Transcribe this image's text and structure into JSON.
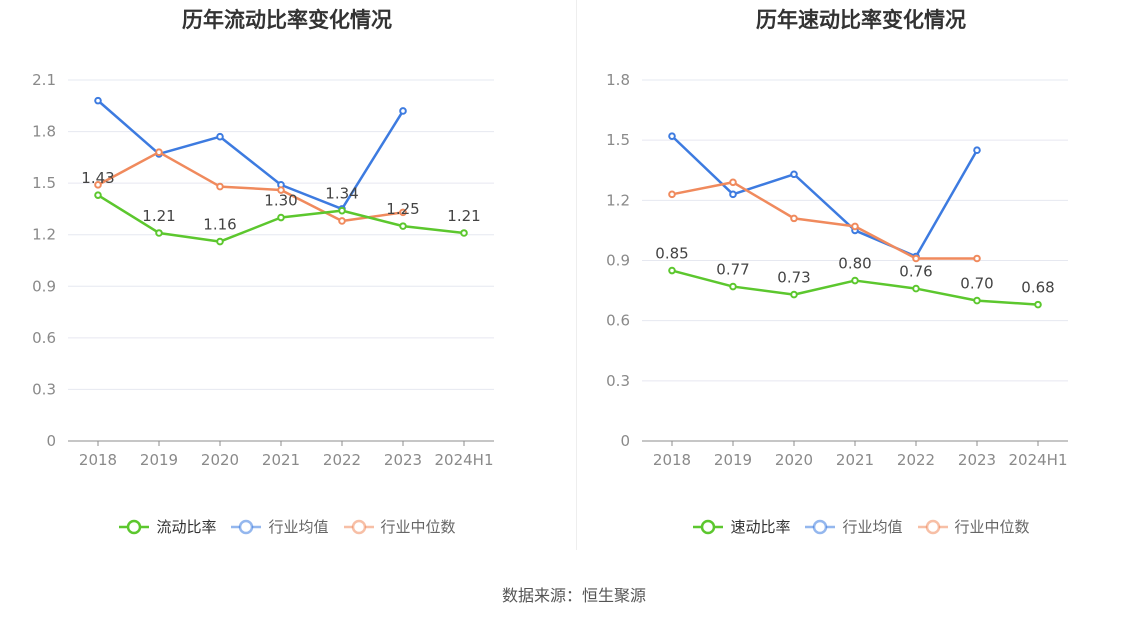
{
  "source": "数据来源：恒生聚源",
  "chart_data": [
    {
      "type": "line",
      "title": "历年流动比率变化情况",
      "categories": [
        "2018",
        "2019",
        "2020",
        "2021",
        "2022",
        "2023",
        "2024H1"
      ],
      "ylim": [
        0,
        2.1
      ],
      "yticks": [
        "0",
        "0.3",
        "0.6",
        "0.9",
        "1.2",
        "1.5",
        "1.8",
        "2.1"
      ],
      "grid": true,
      "legend_position": "bottom",
      "series": [
        {
          "name": "流动比率",
          "color": "#5cc72e",
          "values": [
            1.43,
            1.21,
            1.16,
            1.3,
            1.34,
            1.25,
            1.21
          ],
          "labels": [
            "1.43",
            "1.21",
            "1.16",
            "1.30",
            "1.34",
            "1.25",
            "1.21"
          ]
        },
        {
          "name": "行业均值",
          "color": "#3d7be0",
          "values": [
            1.98,
            1.67,
            1.77,
            1.49,
            1.35,
            1.92,
            null
          ]
        },
        {
          "name": "行业中位数",
          "color": "#f08a5d",
          "values": [
            1.49,
            1.68,
            1.48,
            1.46,
            1.28,
            1.33,
            null
          ]
        }
      ]
    },
    {
      "type": "line",
      "title": "历年速动比率变化情况",
      "categories": [
        "2018",
        "2019",
        "2020",
        "2021",
        "2022",
        "2023",
        "2024H1"
      ],
      "ylim": [
        0,
        1.8
      ],
      "yticks": [
        "0",
        "0.3",
        "0.6",
        "0.9",
        "1.2",
        "1.5",
        "1.8"
      ],
      "grid": true,
      "legend_position": "bottom",
      "series": [
        {
          "name": "速动比率",
          "color": "#5cc72e",
          "values": [
            0.85,
            0.77,
            0.73,
            0.8,
            0.76,
            0.7,
            0.68
          ],
          "labels": [
            "0.85",
            "0.77",
            "0.73",
            "0.80",
            "0.76",
            "0.70",
            "0.68"
          ]
        },
        {
          "name": "行业均值",
          "color": "#3d7be0",
          "values": [
            1.52,
            1.23,
            1.33,
            1.05,
            0.92,
            1.45,
            null
          ]
        },
        {
          "name": "行业中位数",
          "color": "#f08a5d",
          "values": [
            1.23,
            1.29,
            1.11,
            1.07,
            0.91,
            0.91,
            null
          ]
        }
      ]
    }
  ]
}
